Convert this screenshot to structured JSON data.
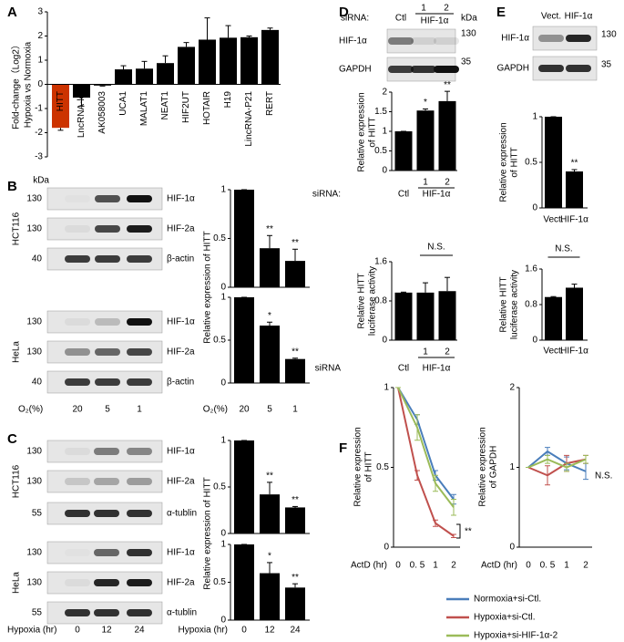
{
  "panel_labels": [
    "A",
    "B",
    "C",
    "D",
    "E",
    "F"
  ],
  "chart_data": [
    {
      "type": "bar",
      "y_label": [
        "Fold-change（Log2）",
        "Hypoxia vs Normoxia"
      ],
      "categories": [
        "HITT",
        "LncRNA-let",
        "AK058003",
        "UCA1",
        "MALAT1",
        "NEAT1",
        "HIF2UT",
        "HOTAIR",
        "H19",
        "LincRNA-P21",
        "RERT"
      ],
      "values": [
        -1.8,
        -0.55,
        -0.05,
        0.62,
        0.65,
        0.88,
        1.55,
        1.85,
        1.93,
        1.95,
        2.25
      ],
      "errors": [
        0.1,
        0.35,
        0.02,
        0.15,
        0.3,
        0.3,
        0.18,
        0.9,
        0.5,
        0.05,
        0.08
      ],
      "colors": [
        "#cc3300",
        "#000000",
        "#000000",
        "#000000",
        "#000000",
        "#000000",
        "#000000",
        "#000000",
        "#000000",
        "#000000",
        "#000000"
      ],
      "ylim": [
        -3,
        3
      ],
      "yticks": [
        -3,
        -2,
        -1,
        0,
        1,
        2,
        3
      ]
    },
    {
      "type": "bar",
      "y_label": "Relative expression of HITT",
      "categories": [
        null,
        null,
        null
      ],
      "values": [
        1,
        0.4,
        0.27
      ],
      "errors": [
        0,
        0.13,
        0.12
      ],
      "annotations": [
        null,
        "**",
        "**"
      ],
      "color": "#000000",
      "ylim": [
        0,
        1
      ],
      "yticks": [
        0,
        0.5,
        1
      ]
    },
    {
      "type": "bar",
      "x_label": "O₂(%)",
      "categories": [
        "20",
        "5",
        "1"
      ],
      "values": [
        1,
        0.67,
        0.28
      ],
      "errors": [
        0,
        0.04,
        0.01
      ],
      "annotations": [
        null,
        "*",
        "**"
      ],
      "color": "#000000",
      "ylim": [
        0,
        1
      ],
      "yticks": [
        0,
        0.5,
        1
      ]
    },
    {
      "type": "bar",
      "y_label": "Relative expression of HITT",
      "categories": [
        null,
        null,
        null
      ],
      "values": [
        1,
        0.42,
        0.28
      ],
      "errors": [
        0,
        0.13,
        0.01
      ],
      "annotations": [
        null,
        "**",
        "**"
      ],
      "color": "#000000",
      "ylim": [
        0,
        1
      ],
      "yticks": [
        0,
        0.5,
        1
      ]
    },
    {
      "type": "bar",
      "x_label": "Hypoxia (hr)",
      "categories": [
        "0",
        "12",
        "24"
      ],
      "values": [
        1,
        0.62,
        0.43
      ],
      "errors": [
        0,
        0.14,
        0.05
      ],
      "annotations": [
        null,
        "*",
        "**"
      ],
      "color": "#000000",
      "ylim": [
        0,
        1
      ],
      "yticks": [
        0,
        0.5,
        1
      ]
    },
    {
      "type": "bar",
      "y_label": [
        "Relative expression",
        "of HITT"
      ],
      "x_label": "siRNA:",
      "group_label": "HIF-1α",
      "categories": [
        "Ctl",
        "1",
        "2"
      ],
      "values": [
        1,
        1.53,
        1.77
      ],
      "errors": [
        0,
        0.04,
        0.25
      ],
      "annotations": [
        null,
        "*",
        "**"
      ],
      "color": "#000000",
      "ylim": [
        0,
        2
      ],
      "yticks": [
        0,
        0.5,
        1,
        1.5,
        2
      ]
    },
    {
      "type": "bar",
      "y_label": [
        "Relative HITT",
        "luciferase activity"
      ],
      "x_label": "siRNA",
      "group_label": "HIF-1α",
      "categories": [
        "Ctl",
        "1",
        "2"
      ],
      "values": [
        0.97,
        0.97,
        1.0
      ],
      "errors": [
        0.01,
        0.2,
        0.28
      ],
      "bracket_label": "N.S.",
      "color": "#000000",
      "ylim": [
        0,
        1.6
      ],
      "yticks": [
        0,
        0.8,
        1.6
      ]
    },
    {
      "type": "bar",
      "y_label": [
        "Relative expression",
        "of HITT"
      ],
      "categories": [
        "Vect.",
        "HIF-1α"
      ],
      "values": [
        1,
        0.4
      ],
      "errors": [
        0,
        0.02
      ],
      "annotations": [
        null,
        "**"
      ],
      "color": "#000000",
      "ylim": [
        0,
        1
      ],
      "yticks": [
        0,
        0.5,
        1
      ]
    },
    {
      "type": "bar",
      "y_label": [
        "Relative HITT",
        "luciferase activity"
      ],
      "categories": [
        "Vect.",
        "HIF-1α"
      ],
      "values": [
        0.97,
        1.18
      ],
      "errors": [
        0.01,
        0.08
      ],
      "bracket_label": "N.S.",
      "color": "#000000",
      "ylim": [
        0,
        1.6
      ],
      "yticks": [
        0,
        0.8,
        1.6
      ]
    },
    {
      "type": "line",
      "y_label": [
        "Relative expression",
        "of HITT"
      ],
      "x_label": "ActD (hr)",
      "categories": [
        "0",
        "0. 5",
        "1",
        "2"
      ],
      "ylim": [
        0,
        1
      ],
      "yticks": [
        0,
        0.5,
        1
      ],
      "annotation": "**",
      "series": [
        {
          "name": "Normoxia+si-Ctl.",
          "color": "#4a7ebb",
          "values": [
            1,
            0.8,
            0.45,
            0.3
          ],
          "errors": [
            0,
            0.03,
            0.03,
            0.03
          ]
        },
        {
          "name": "Hypoxia+si-Ctl.",
          "color": "#c0504d",
          "values": [
            1,
            0.45,
            0.15,
            0.07
          ],
          "errors": [
            0,
            0.03,
            0.02,
            0.01
          ]
        },
        {
          "name": "Hypoxia+si-HIF-1α-2",
          "color": "#9bbb59",
          "values": [
            1,
            0.75,
            0.4,
            0.25
          ],
          "errors": [
            0,
            0.08,
            0.05,
            0.05
          ]
        }
      ]
    },
    {
      "type": "line",
      "y_label": [
        "Relative expression",
        "of GAPDH"
      ],
      "x_label": "ActD (hr)",
      "categories": [
        "0",
        "0. 5",
        "1",
        "2"
      ],
      "ylim": [
        0,
        2
      ],
      "yticks": [
        0,
        1,
        2
      ],
      "annotation": "N.S.",
      "series": [
        {
          "color": "#4a7ebb",
          "values": [
            1,
            1.2,
            1.05,
            0.95
          ],
          "errors": [
            0,
            0.05,
            0.08,
            0.1
          ]
        },
        {
          "color": "#c0504d",
          "values": [
            1,
            0.9,
            1.05,
            1.1
          ],
          "errors": [
            0,
            0.12,
            0.1,
            0.05
          ]
        },
        {
          "color": "#9bbb59",
          "values": [
            1,
            1.1,
            1.0,
            1.1
          ],
          "errors": [
            0,
            0.05,
            0.05,
            0.05
          ]
        }
      ]
    }
  ],
  "blots": {
    "B": {
      "unit": "kDa",
      "lane_title": "O₂(%)",
      "lanes": [
        20,
        5,
        1
      ],
      "groups": [
        {
          "cell_line": "HCT116",
          "rows": [
            {
              "protein": "HIF-1α",
              "mw": 130
            },
            {
              "protein": "HIF-2a",
              "mw": 130
            },
            {
              "protein": "β-actin",
              "mw": 40
            }
          ]
        },
        {
          "cell_line": "HeLa",
          "rows": [
            {
              "protein": "HIF-1α",
              "mw": 130
            },
            {
              "protein": "HIF-2a",
              "mw": 130
            },
            {
              "protein": "β-actin",
              "mw": 40
            }
          ]
        }
      ]
    },
    "C": {
      "lane_title": "Hypoxia (hr)",
      "lanes": [
        0,
        12,
        24
      ],
      "groups": [
        {
          "cell_line": "HCT116",
          "rows": [
            {
              "protein": "HIF-1α",
              "mw": 130
            },
            {
              "protein": "HIF-2a",
              "mw": 130
            },
            {
              "protein": "α-tublin",
              "mw": 55
            }
          ]
        },
        {
          "cell_line": "HeLa",
          "rows": [
            {
              "protein": "HIF-1α",
              "mw": 130
            },
            {
              "protein": "HIF-2a",
              "mw": 130
            },
            {
              "protein": "α-tublin",
              "mw": 55
            }
          ]
        }
      ]
    },
    "D": {
      "unit": "kDa",
      "lane_title": "siRNA:",
      "group_label": "HIF-1α",
      "lanes": [
        "Ctl",
        1,
        2
      ],
      "rows": [
        {
          "protein": "HIF-1α",
          "mw": 130
        },
        {
          "protein": "GAPDH",
          "mw": 35
        }
      ]
    },
    "E": {
      "lanes": [
        "Vect.",
        "HIF-1α"
      ],
      "rows": [
        {
          "protein": "HIF-1α",
          "mw": 130
        },
        {
          "protein": "GAPDH",
          "mw": 35
        }
      ]
    }
  }
}
